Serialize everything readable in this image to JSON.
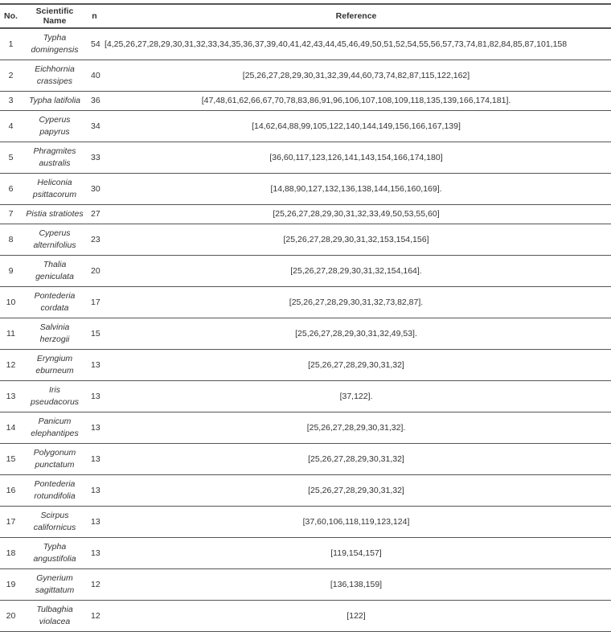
{
  "headers": {
    "no": "No.",
    "name": "Scientific Name",
    "n": "n",
    "ref": "Reference"
  },
  "rows": [
    {
      "no": "1",
      "name": "Typha domingensis",
      "n": "54",
      "ref": "[4,25,26,27,28,29,30,31,32,33,34,35,36,37,39,40,41,42,43,44,45,46,49,50,51,52,54,55,56,57,73,74,81,82,84,85,87,101,158"
    },
    {
      "no": "2",
      "name": "Eichhornia crassipes",
      "n": "40",
      "ref": "[25,26,27,28,29,30,31,32,39,44,60,73,74,82,87,115,122,162]"
    },
    {
      "no": "3",
      "name": "Typha latifolia",
      "n": "36",
      "ref": "[47,48,61,62,66,67,70,78,83,86,91,96,106,107,108,109,118,135,139,166,174,181]."
    },
    {
      "no": "4",
      "name": "Cyperus papyrus",
      "n": "34",
      "ref": "[14,62,64,88,99,105,122,140,144,149,156,166,167,139]"
    },
    {
      "no": "5",
      "name": "Phragmites australis",
      "n": "33",
      "ref": "[36,60,117,123,126,141,143,154,166,174,180]"
    },
    {
      "no": "6",
      "name": "Heliconia psittacorum",
      "n": "30",
      "ref": "[14,88,90,127,132,136,138,144,156,160,169]."
    },
    {
      "no": "7",
      "name": "Pistia stratiotes",
      "n": "27",
      "ref": "[25,26,27,28,29,30,31,32,33,49,50,53,55,60]"
    },
    {
      "no": "8",
      "name": "Cyperus alternifolius",
      "n": "23",
      "ref": "[25,26,27,28,29,30,31,32,153,154,156]"
    },
    {
      "no": "9",
      "name": "Thalia geniculata",
      "n": "20",
      "ref": "[25,26,27,28,29,30,31,32,154,164]."
    },
    {
      "no": "10",
      "name": "Pontederia cordata",
      "n": "17",
      "ref": "[25,26,27,28,29,30,31,32,73,82,87]."
    },
    {
      "no": "11",
      "name": "Salvinia herzogii",
      "n": "15",
      "ref": "[25,26,27,28,29,30,31,32,49,53]."
    },
    {
      "no": "12",
      "name": "Eryngium eburneum",
      "n": "13",
      "ref": "[25,26,27,28,29,30,31,32]"
    },
    {
      "no": "13",
      "name": "Iris pseudacorus",
      "n": "13",
      "ref": "[37,122]."
    },
    {
      "no": "14",
      "name": "Panicum elephantipes",
      "n": "13",
      "ref": "[25,26,27,28,29,30,31,32]."
    },
    {
      "no": "15",
      "name": "Polygonum punctatum",
      "n": "13",
      "ref": "[25,26,27,28,29,30,31,32]"
    },
    {
      "no": "16",
      "name": "Pontederia rotundifolia",
      "n": "13",
      "ref": "[25,26,27,28,29,30,31,32]"
    },
    {
      "no": "17",
      "name": "Scirpus californicus",
      "n": "13",
      "ref": "[37,60,106,118,119,123,124]"
    },
    {
      "no": "18",
      "name": "Typha angustifolia",
      "n": "13",
      "ref": "[119,154,157]"
    },
    {
      "no": "19",
      "name": "Gynerium sagittatum",
      "n": "12",
      "ref": "[136,138,159]"
    },
    {
      "no": "20",
      "name": "Tulbaghia violacea",
      "n": "12",
      "ref": "[122]"
    }
  ]
}
